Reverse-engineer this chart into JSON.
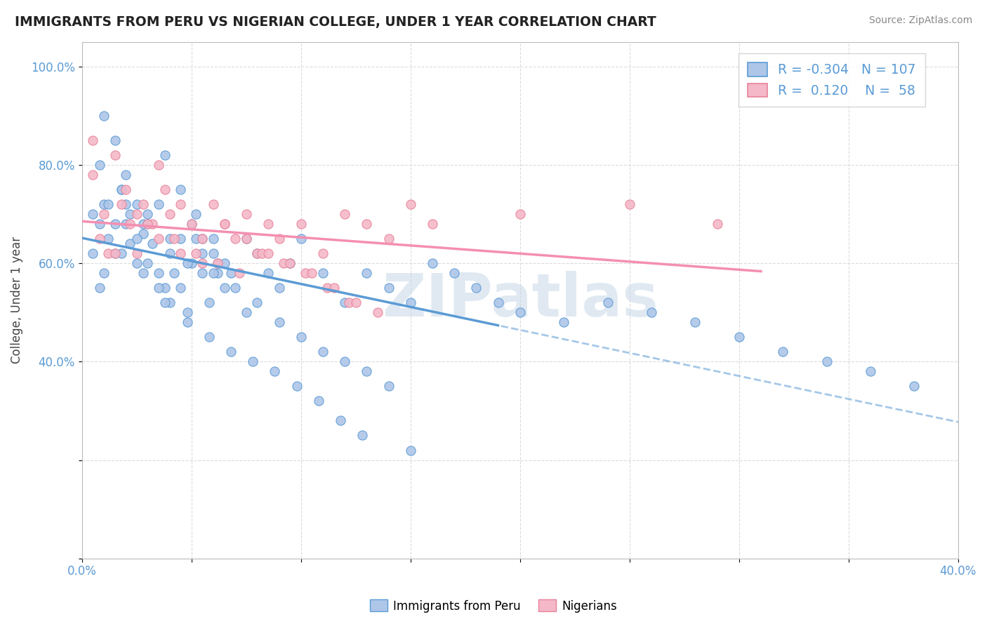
{
  "title": "IMMIGRANTS FROM PERU VS NIGERIAN COLLEGE, UNDER 1 YEAR CORRELATION CHART",
  "source": "Source: ZipAtlas.com",
  "ylabel": "College, Under 1 year",
  "xlim": [
    0.0,
    0.4
  ],
  "ylim": [
    0.0,
    1.05
  ],
  "legend_r_peru": "-0.304",
  "legend_n_peru": "107",
  "legend_r_nigerian": "0.120",
  "legend_n_nigerian": "58",
  "color_peru": "#aec6e8",
  "color_nigerian": "#f4b8c8",
  "line_color_peru": "#5b9bd5",
  "line_color_nigerian": "#f48fb1",
  "watermark": "ZIPatlas",
  "peru_scatter_x": [
    0.005,
    0.008,
    0.01,
    0.012,
    0.015,
    0.018,
    0.02,
    0.022,
    0.025,
    0.028,
    0.03,
    0.032,
    0.035,
    0.038,
    0.04,
    0.042,
    0.045,
    0.048,
    0.05,
    0.052,
    0.055,
    0.058,
    0.06,
    0.062,
    0.065,
    0.008,
    0.012,
    0.018,
    0.022,
    0.028,
    0.035,
    0.04,
    0.048,
    0.055,
    0.062,
    0.01,
    0.015,
    0.02,
    0.025,
    0.03,
    0.038,
    0.045,
    0.052,
    0.06,
    0.068,
    0.075,
    0.08,
    0.085,
    0.09,
    0.095,
    0.1,
    0.11,
    0.12,
    0.13,
    0.14,
    0.15,
    0.16,
    0.17,
    0.18,
    0.19,
    0.2,
    0.22,
    0.24,
    0.26,
    0.28,
    0.3,
    0.32,
    0.34,
    0.36,
    0.38,
    0.005,
    0.01,
    0.015,
    0.02,
    0.025,
    0.03,
    0.035,
    0.04,
    0.045,
    0.05,
    0.055,
    0.06,
    0.065,
    0.07,
    0.075,
    0.08,
    0.09,
    0.1,
    0.11,
    0.12,
    0.13,
    0.14,
    0.15,
    0.008,
    0.018,
    0.028,
    0.038,
    0.048,
    0.058,
    0.068,
    0.078,
    0.088,
    0.098,
    0.108,
    0.118,
    0.128
  ],
  "peru_scatter_y": [
    0.7,
    0.68,
    0.72,
    0.65,
    0.62,
    0.75,
    0.68,
    0.64,
    0.6,
    0.66,
    0.7,
    0.64,
    0.58,
    0.55,
    0.62,
    0.58,
    0.55,
    0.5,
    0.6,
    0.65,
    0.58,
    0.52,
    0.62,
    0.58,
    0.55,
    0.8,
    0.72,
    0.75,
    0.7,
    0.68,
    0.72,
    0.65,
    0.6,
    0.65,
    0.6,
    0.9,
    0.85,
    0.78,
    0.72,
    0.68,
    0.82,
    0.75,
    0.7,
    0.65,
    0.58,
    0.65,
    0.62,
    0.58,
    0.55,
    0.6,
    0.65,
    0.58,
    0.52,
    0.58,
    0.55,
    0.52,
    0.6,
    0.58,
    0.55,
    0.52,
    0.5,
    0.48,
    0.52,
    0.5,
    0.48,
    0.45,
    0.42,
    0.4,
    0.38,
    0.35,
    0.62,
    0.58,
    0.68,
    0.72,
    0.65,
    0.6,
    0.55,
    0.52,
    0.65,
    0.68,
    0.62,
    0.58,
    0.6,
    0.55,
    0.5,
    0.52,
    0.48,
    0.45,
    0.42,
    0.4,
    0.38,
    0.35,
    0.22,
    0.55,
    0.62,
    0.58,
    0.52,
    0.48,
    0.45,
    0.42,
    0.4,
    0.38,
    0.35,
    0.32,
    0.28,
    0.25
  ],
  "nigerian_scatter_x": [
    0.005,
    0.01,
    0.015,
    0.018,
    0.022,
    0.025,
    0.028,
    0.032,
    0.035,
    0.038,
    0.04,
    0.045,
    0.05,
    0.055,
    0.06,
    0.065,
    0.07,
    0.075,
    0.08,
    0.085,
    0.09,
    0.1,
    0.11,
    0.12,
    0.13,
    0.14,
    0.15,
    0.16,
    0.2,
    0.25,
    0.29,
    0.008,
    0.012,
    0.02,
    0.03,
    0.042,
    0.052,
    0.062,
    0.072,
    0.082,
    0.092,
    0.102,
    0.112,
    0.122,
    0.005,
    0.015,
    0.025,
    0.035,
    0.045,
    0.055,
    0.065,
    0.075,
    0.085,
    0.095,
    0.105,
    0.115,
    0.125,
    0.135
  ],
  "nigerian_scatter_y": [
    0.78,
    0.7,
    0.82,
    0.72,
    0.68,
    0.62,
    0.72,
    0.68,
    0.8,
    0.75,
    0.7,
    0.72,
    0.68,
    0.65,
    0.72,
    0.68,
    0.65,
    0.7,
    0.62,
    0.68,
    0.65,
    0.68,
    0.62,
    0.7,
    0.68,
    0.65,
    0.72,
    0.68,
    0.7,
    0.72,
    0.68,
    0.65,
    0.62,
    0.75,
    0.68,
    0.65,
    0.62,
    0.6,
    0.58,
    0.62,
    0.6,
    0.58,
    0.55,
    0.52,
    0.85,
    0.62,
    0.7,
    0.65,
    0.62,
    0.6,
    0.68,
    0.65,
    0.62,
    0.6,
    0.58,
    0.55,
    0.52,
    0.5
  ]
}
